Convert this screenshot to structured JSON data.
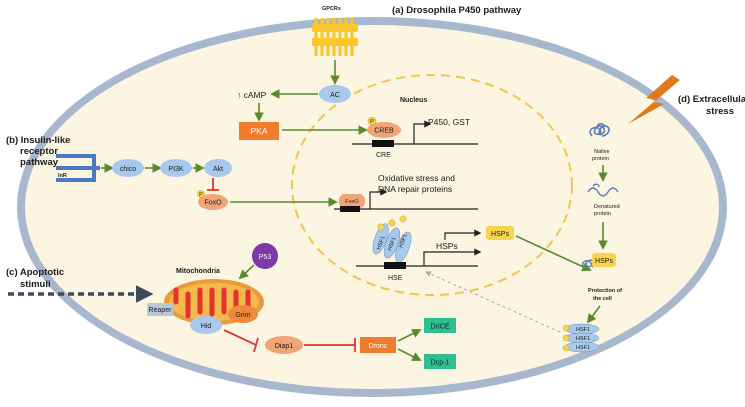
{
  "sections": {
    "a": "(a) Drosophila P450 pathway",
    "b_line1": "(b) Insulin-like",
    "b_line2": "receptor",
    "b_line3": "pathway",
    "c_line1": "(c) Apoptotic",
    "c_line2": "stimuli",
    "d_line1": "(d) Extracellular",
    "d_line2": "stress"
  },
  "labels": {
    "gpcrs": "GPCRs",
    "ac": "AC",
    "camp": "↑ cAMP",
    "pka": "PKA",
    "nucleus": "Nucleus",
    "creb": "CREB",
    "p450_gst": "P450, GST",
    "cre": "CRE",
    "inr": "InR",
    "chico": "chico",
    "pi3k": "PI3K",
    "akt": "Akt",
    "foxo": "FoxO",
    "foxo_nuc": "FoxO",
    "ox_line1": "Oxidative stress and",
    "ox_line2": "DNA repair proteins",
    "hsf1": "HSF1",
    "hsps_arrow": "HSPs",
    "hse": "HSE",
    "hsps_box": "HSPs",
    "hsps_box2": "HSPs",
    "native_line1": "Native",
    "native_line2": "protein",
    "denat_line1": "Denatured",
    "denat_line2": "protein",
    "protection_line1": "Protection of",
    "protection_line2": "the cell",
    "p53": "P53",
    "mito": "Mitochondria",
    "reaper": "Reaper",
    "grim": "Grim",
    "hid": "Hid",
    "diap1": "Diap1",
    "dronc": "Dronc",
    "drice": "DrICE",
    "dcp1": "Dcp-1",
    "p": "P"
  },
  "colors": {
    "cell_fill": "#fcf5e2",
    "cell_border": "#a7b8ce",
    "arrow_green": "#5b8a2d",
    "inhibit_red": "#e0342f",
    "pka_orange": "#ef7d2e",
    "blue_node": "#a8c8ec",
    "salmon_node": "#f2a477",
    "hsp_yellow": "#f9d450",
    "teal_box": "#2fbe93",
    "purple_p53": "#7b3aa5",
    "nucleus_dash": "#f0c450",
    "lightning": "#e07a18"
  }
}
